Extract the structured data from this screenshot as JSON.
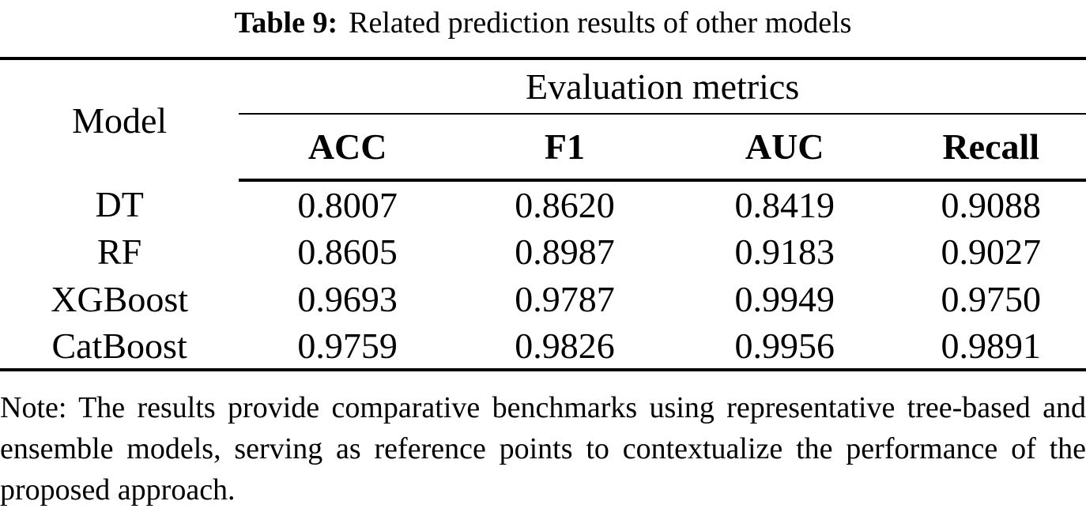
{
  "caption": {
    "label": "Table 9:",
    "text": "Related prediction results of other models"
  },
  "table": {
    "model_header": "Model",
    "group_header": "Evaluation metrics",
    "metric_headers": [
      "ACC",
      "F1",
      "AUC",
      "Recall"
    ],
    "rows": [
      {
        "model": "DT",
        "values": [
          "0.8007",
          "0.8620",
          "0.8419",
          "0.9088"
        ],
        "bold": false
      },
      {
        "model": "RF",
        "values": [
          "0.8605",
          "0.8987",
          "0.9183",
          "0.9027"
        ],
        "bold": false
      },
      {
        "model": "XGBoost",
        "values": [
          "0.9693",
          "0.9787",
          "0.9949",
          "0.9750"
        ],
        "bold": false
      },
      {
        "model": "CatBoost",
        "values": [
          "0.9759",
          "0.9826",
          "0.9956",
          "0.9891"
        ],
        "bold": true
      }
    ]
  },
  "note": "Note: The results provide comparative benchmarks using representative tree-based and ensemble models, serving as reference points to contextualize the performance of the proposed approach.",
  "colors": {
    "text": "#000000",
    "background": "#ffffff",
    "rule": "#000000"
  }
}
